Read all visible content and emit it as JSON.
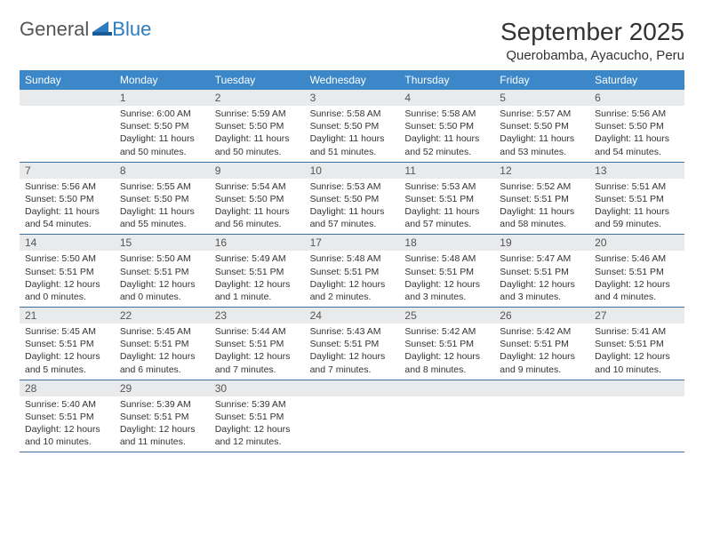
{
  "logo": {
    "text1": "General",
    "text2": "Blue"
  },
  "title": "September 2025",
  "location": "Querobamba, Ayacucho, Peru",
  "colors": {
    "header_bg": "#3b87c8",
    "header_text": "#ffffff",
    "daynum_bg": "#e9eaec",
    "week_border": "#3b6fa0",
    "body_text": "#333333"
  },
  "weekdays": [
    "Sunday",
    "Monday",
    "Tuesday",
    "Wednesday",
    "Thursday",
    "Friday",
    "Saturday"
  ],
  "weeks": [
    [
      {
        "n": "",
        "sr": "",
        "ss": "",
        "dl": ""
      },
      {
        "n": "1",
        "sr": "Sunrise: 6:00 AM",
        "ss": "Sunset: 5:50 PM",
        "dl": "Daylight: 11 hours and 50 minutes."
      },
      {
        "n": "2",
        "sr": "Sunrise: 5:59 AM",
        "ss": "Sunset: 5:50 PM",
        "dl": "Daylight: 11 hours and 50 minutes."
      },
      {
        "n": "3",
        "sr": "Sunrise: 5:58 AM",
        "ss": "Sunset: 5:50 PM",
        "dl": "Daylight: 11 hours and 51 minutes."
      },
      {
        "n": "4",
        "sr": "Sunrise: 5:58 AM",
        "ss": "Sunset: 5:50 PM",
        "dl": "Daylight: 11 hours and 52 minutes."
      },
      {
        "n": "5",
        "sr": "Sunrise: 5:57 AM",
        "ss": "Sunset: 5:50 PM",
        "dl": "Daylight: 11 hours and 53 minutes."
      },
      {
        "n": "6",
        "sr": "Sunrise: 5:56 AM",
        "ss": "Sunset: 5:50 PM",
        "dl": "Daylight: 11 hours and 54 minutes."
      }
    ],
    [
      {
        "n": "7",
        "sr": "Sunrise: 5:56 AM",
        "ss": "Sunset: 5:50 PM",
        "dl": "Daylight: 11 hours and 54 minutes."
      },
      {
        "n": "8",
        "sr": "Sunrise: 5:55 AM",
        "ss": "Sunset: 5:50 PM",
        "dl": "Daylight: 11 hours and 55 minutes."
      },
      {
        "n": "9",
        "sr": "Sunrise: 5:54 AM",
        "ss": "Sunset: 5:50 PM",
        "dl": "Daylight: 11 hours and 56 minutes."
      },
      {
        "n": "10",
        "sr": "Sunrise: 5:53 AM",
        "ss": "Sunset: 5:50 PM",
        "dl": "Daylight: 11 hours and 57 minutes."
      },
      {
        "n": "11",
        "sr": "Sunrise: 5:53 AM",
        "ss": "Sunset: 5:51 PM",
        "dl": "Daylight: 11 hours and 57 minutes."
      },
      {
        "n": "12",
        "sr": "Sunrise: 5:52 AM",
        "ss": "Sunset: 5:51 PM",
        "dl": "Daylight: 11 hours and 58 minutes."
      },
      {
        "n": "13",
        "sr": "Sunrise: 5:51 AM",
        "ss": "Sunset: 5:51 PM",
        "dl": "Daylight: 11 hours and 59 minutes."
      }
    ],
    [
      {
        "n": "14",
        "sr": "Sunrise: 5:50 AM",
        "ss": "Sunset: 5:51 PM",
        "dl": "Daylight: 12 hours and 0 minutes."
      },
      {
        "n": "15",
        "sr": "Sunrise: 5:50 AM",
        "ss": "Sunset: 5:51 PM",
        "dl": "Daylight: 12 hours and 0 minutes."
      },
      {
        "n": "16",
        "sr": "Sunrise: 5:49 AM",
        "ss": "Sunset: 5:51 PM",
        "dl": "Daylight: 12 hours and 1 minute."
      },
      {
        "n": "17",
        "sr": "Sunrise: 5:48 AM",
        "ss": "Sunset: 5:51 PM",
        "dl": "Daylight: 12 hours and 2 minutes."
      },
      {
        "n": "18",
        "sr": "Sunrise: 5:48 AM",
        "ss": "Sunset: 5:51 PM",
        "dl": "Daylight: 12 hours and 3 minutes."
      },
      {
        "n": "19",
        "sr": "Sunrise: 5:47 AM",
        "ss": "Sunset: 5:51 PM",
        "dl": "Daylight: 12 hours and 3 minutes."
      },
      {
        "n": "20",
        "sr": "Sunrise: 5:46 AM",
        "ss": "Sunset: 5:51 PM",
        "dl": "Daylight: 12 hours and 4 minutes."
      }
    ],
    [
      {
        "n": "21",
        "sr": "Sunrise: 5:45 AM",
        "ss": "Sunset: 5:51 PM",
        "dl": "Daylight: 12 hours and 5 minutes."
      },
      {
        "n": "22",
        "sr": "Sunrise: 5:45 AM",
        "ss": "Sunset: 5:51 PM",
        "dl": "Daylight: 12 hours and 6 minutes."
      },
      {
        "n": "23",
        "sr": "Sunrise: 5:44 AM",
        "ss": "Sunset: 5:51 PM",
        "dl": "Daylight: 12 hours and 7 minutes."
      },
      {
        "n": "24",
        "sr": "Sunrise: 5:43 AM",
        "ss": "Sunset: 5:51 PM",
        "dl": "Daylight: 12 hours and 7 minutes."
      },
      {
        "n": "25",
        "sr": "Sunrise: 5:42 AM",
        "ss": "Sunset: 5:51 PM",
        "dl": "Daylight: 12 hours and 8 minutes."
      },
      {
        "n": "26",
        "sr": "Sunrise: 5:42 AM",
        "ss": "Sunset: 5:51 PM",
        "dl": "Daylight: 12 hours and 9 minutes."
      },
      {
        "n": "27",
        "sr": "Sunrise: 5:41 AM",
        "ss": "Sunset: 5:51 PM",
        "dl": "Daylight: 12 hours and 10 minutes."
      }
    ],
    [
      {
        "n": "28",
        "sr": "Sunrise: 5:40 AM",
        "ss": "Sunset: 5:51 PM",
        "dl": "Daylight: 12 hours and 10 minutes."
      },
      {
        "n": "29",
        "sr": "Sunrise: 5:39 AM",
        "ss": "Sunset: 5:51 PM",
        "dl": "Daylight: 12 hours and 11 minutes."
      },
      {
        "n": "30",
        "sr": "Sunrise: 5:39 AM",
        "ss": "Sunset: 5:51 PM",
        "dl": "Daylight: 12 hours and 12 minutes."
      },
      {
        "n": "",
        "sr": "",
        "ss": "",
        "dl": ""
      },
      {
        "n": "",
        "sr": "",
        "ss": "",
        "dl": ""
      },
      {
        "n": "",
        "sr": "",
        "ss": "",
        "dl": ""
      },
      {
        "n": "",
        "sr": "",
        "ss": "",
        "dl": ""
      }
    ]
  ]
}
